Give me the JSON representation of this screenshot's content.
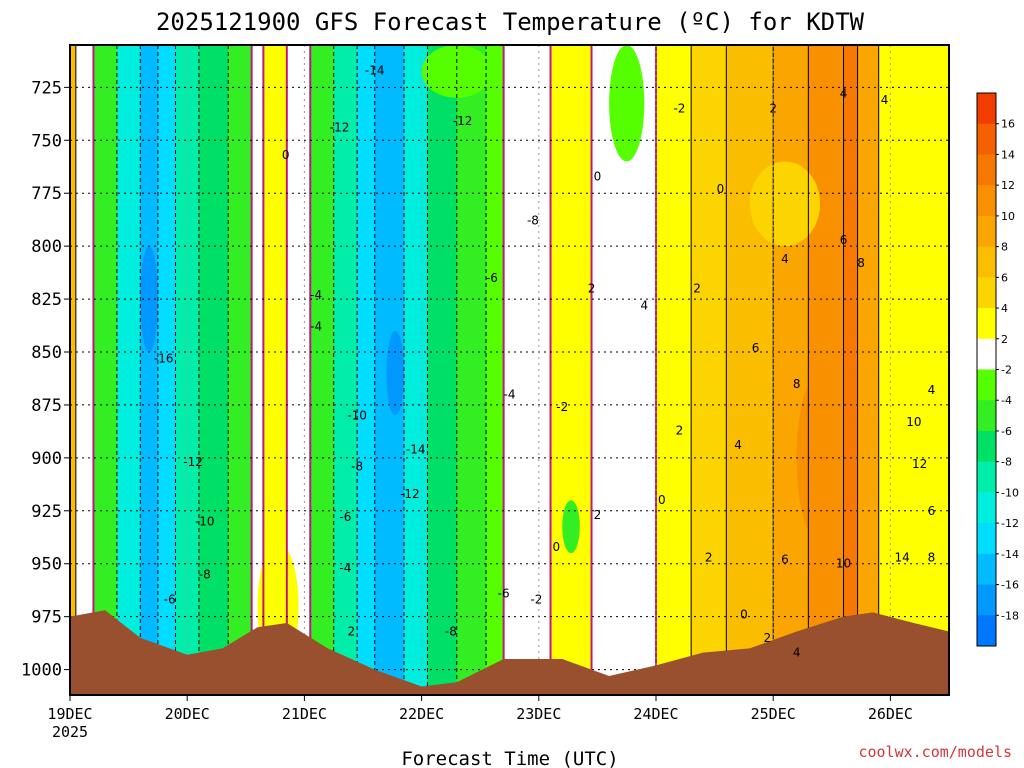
{
  "chart_data": {
    "type": "heatmap",
    "title": "2025121900 GFS Forecast Temperature (ºC) for KDTW",
    "xlabel": "Forecast Time (UTC)",
    "ylabel": "",
    "x_ticks": [
      "19DEC",
      "20DEC",
      "21DEC",
      "22DEC",
      "23DEC",
      "24DEC",
      "25DEC",
      "26DEC"
    ],
    "x_year": "2025",
    "y_unit": "hPa",
    "y_ticks": [
      725,
      750,
      775,
      800,
      825,
      850,
      875,
      900,
      925,
      950,
      975,
      1000
    ],
    "ylim": [
      1012,
      705
    ],
    "xlim_days": [
      0,
      7.5
    ],
    "grid": true,
    "colorbar": {
      "ticks": [
        16,
        14,
        12,
        10,
        8,
        6,
        4,
        2,
        -2,
        -4,
        -6,
        -8,
        -10,
        -12,
        -14,
        -16,
        -18
      ],
      "bins": [
        {
          "min": 16,
          "max": 18,
          "color": "#f23c00"
        },
        {
          "min": 14,
          "max": 16,
          "color": "#f45f00"
        },
        {
          "min": 12,
          "max": 14,
          "color": "#f67800"
        },
        {
          "min": 10,
          "max": 12,
          "color": "#f89000"
        },
        {
          "min": 8,
          "max": 10,
          "color": "#faa500"
        },
        {
          "min": 6,
          "max": 8,
          "color": "#fbbd00"
        },
        {
          "min": 4,
          "max": 6,
          "color": "#fcd500"
        },
        {
          "min": 2,
          "max": 4,
          "color": "#ffff00"
        },
        {
          "min": -2,
          "max": 2,
          "color": "#ffffff"
        },
        {
          "min": -4,
          "max": -2,
          "color": "#55ff00"
        },
        {
          "min": -6,
          "max": -4,
          "color": "#33ee22"
        },
        {
          "min": -8,
          "max": -6,
          "color": "#00e066"
        },
        {
          "min": -10,
          "max": -8,
          "color": "#00eeaa"
        },
        {
          "min": -12,
          "max": -10,
          "color": "#00eedd"
        },
        {
          "min": -14,
          "max": -12,
          "color": "#00ddff"
        },
        {
          "min": -16,
          "max": -14,
          "color": "#00bbff"
        },
        {
          "min": -18,
          "max": -16,
          "color": "#0099ff"
        },
        {
          "min": -20,
          "max": -18,
          "color": "#0077ff"
        }
      ]
    },
    "bands": [
      {
        "x0": 0.0,
        "x1": 0.05,
        "value": 7
      },
      {
        "x0": 0.05,
        "x1": 0.2,
        "value": 1
      },
      {
        "x0": 0.2,
        "x1": 0.4,
        "value": -5
      },
      {
        "x0": 0.4,
        "x1": 0.6,
        "value": -11
      },
      {
        "x0": 0.6,
        "x1": 0.75,
        "value": -15
      },
      {
        "x0": 0.75,
        "x1": 0.9,
        "value": -13
      },
      {
        "x0": 0.9,
        "x1": 1.1,
        "value": -9
      },
      {
        "x0": 1.1,
        "x1": 1.35,
        "value": -7
      },
      {
        "x0": 1.35,
        "x1": 1.55,
        "value": -5
      },
      {
        "x0": 1.55,
        "x1": 1.65,
        "value": 0
      },
      {
        "x0": 1.65,
        "x1": 1.85,
        "value": 3
      },
      {
        "x0": 1.85,
        "x1": 2.05,
        "value": 0
      },
      {
        "x0": 2.05,
        "x1": 2.25,
        "value": -5
      },
      {
        "x0": 2.25,
        "x1": 2.45,
        "value": -9
      },
      {
        "x0": 2.45,
        "x1": 2.6,
        "value": -13
      },
      {
        "x0": 2.6,
        "x1": 2.85,
        "value": -15
      },
      {
        "x0": 2.85,
        "x1": 3.05,
        "value": -11
      },
      {
        "x0": 3.05,
        "x1": 3.3,
        "value": -7
      },
      {
        "x0": 3.3,
        "x1": 3.55,
        "value": -5
      },
      {
        "x0": 3.55,
        "x1": 3.7,
        "value": -3
      },
      {
        "x0": 3.7,
        "x1": 4.1,
        "value": 0
      },
      {
        "x0": 4.1,
        "x1": 4.45,
        "value": 3
      },
      {
        "x0": 4.45,
        "x1": 5.0,
        "value": 0
      },
      {
        "x0": 5.0,
        "x1": 5.3,
        "value": 3
      },
      {
        "x0": 5.3,
        "x1": 5.6,
        "value": 5
      },
      {
        "x0": 5.6,
        "x1": 6.0,
        "value": 7
      },
      {
        "x0": 6.0,
        "x1": 6.3,
        "value": 9
      },
      {
        "x0": 6.3,
        "x1": 6.6,
        "value": 11
      },
      {
        "x0": 6.6,
        "x1": 6.72,
        "value": 13
      },
      {
        "x0": 6.72,
        "x1": 6.9,
        "value": 9
      },
      {
        "x0": 6.9,
        "x1": 7.5,
        "value": 3
      }
    ],
    "overlays": [
      {
        "x0": 2.7,
        "x1": 2.85,
        "p0": 840,
        "p1": 880,
        "value": -17
      },
      {
        "x0": 0.6,
        "x1": 0.75,
        "p0": 800,
        "p1": 850,
        "value": -17
      },
      {
        "x0": 4.2,
        "x1": 4.35,
        "p0": 920,
        "p1": 945,
        "value": -5
      },
      {
        "x0": 5.8,
        "x1": 6.4,
        "p0": 760,
        "p1": 800,
        "value": 5
      },
      {
        "x0": 6.2,
        "x1": 6.6,
        "p0": 860,
        "p1": 940,
        "value": 11
      },
      {
        "x0": 1.6,
        "x1": 1.95,
        "p0": 940,
        "p1": 1000,
        "value": 3
      },
      {
        "x0": 4.6,
        "x1": 4.9,
        "p0": 705,
        "p1": 760,
        "value": -3
      },
      {
        "x0": 3.0,
        "x1": 3.6,
        "p0": 705,
        "p1": 730,
        "value": -3
      }
    ],
    "surface_hpa": [
      [
        0.0,
        975
      ],
      [
        0.3,
        972
      ],
      [
        0.6,
        985
      ],
      [
        1.0,
        993
      ],
      [
        1.3,
        990
      ],
      [
        1.6,
        980
      ],
      [
        1.85,
        978
      ],
      [
        2.2,
        990
      ],
      [
        2.6,
        1000
      ],
      [
        3.0,
        1008
      ],
      [
        3.3,
        1006
      ],
      [
        3.7,
        995
      ],
      [
        4.2,
        995
      ],
      [
        4.6,
        1003
      ],
      [
        5.0,
        998
      ],
      [
        5.4,
        992
      ],
      [
        5.8,
        990
      ],
      [
        6.2,
        982
      ],
      [
        6.6,
        975
      ],
      [
        6.85,
        973
      ],
      [
        7.2,
        978
      ],
      [
        7.5,
        982
      ]
    ],
    "contour_labels": [
      {
        "text": "-14",
        "x": 2.6,
        "p": 717
      },
      {
        "text": "-12",
        "x": 3.35,
        "p": 741
      },
      {
        "text": "-12",
        "x": 2.3,
        "p": 744
      },
      {
        "text": "0",
        "x": 1.84,
        "p": 757
      },
      {
        "text": "0",
        "x": 4.5,
        "p": 767
      },
      {
        "text": "0",
        "x": 5.55,
        "p": 773
      },
      {
        "text": "-2",
        "x": 5.2,
        "p": 735
      },
      {
        "text": "2",
        "x": 6.0,
        "p": 735
      },
      {
        "text": "-8",
        "x": 3.95,
        "p": 788
      },
      {
        "text": "-6",
        "x": 3.6,
        "p": 815
      },
      {
        "text": "2",
        "x": 4.45,
        "p": 820
      },
      {
        "text": "4",
        "x": 4.9,
        "p": 828
      },
      {
        "text": "2",
        "x": 5.35,
        "p": 820
      },
      {
        "text": "4",
        "x": 6.1,
        "p": 806
      },
      {
        "text": "6",
        "x": 6.6,
        "p": 797
      },
      {
        "text": "8",
        "x": 6.75,
        "p": 808
      },
      {
        "text": "4",
        "x": 6.6,
        "p": 728
      },
      {
        "text": "4",
        "x": 6.95,
        "p": 731
      },
      {
        "text": "-4",
        "x": 2.1,
        "p": 823
      },
      {
        "text": "-4",
        "x": 2.1,
        "p": 838
      },
      {
        "text": "-16",
        "x": 0.8,
        "p": 853
      },
      {
        "text": "6",
        "x": 5.85,
        "p": 848
      },
      {
        "text": "8",
        "x": 6.2,
        "p": 865
      },
      {
        "text": "-4",
        "x": 3.75,
        "p": 870
      },
      {
        "text": "-2",
        "x": 4.2,
        "p": 876
      },
      {
        "text": "-10",
        "x": 2.45,
        "p": 880
      },
      {
        "text": "2",
        "x": 5.2,
        "p": 887
      },
      {
        "text": "4",
        "x": 5.7,
        "p": 894
      },
      {
        "text": "10",
        "x": 7.2,
        "p": 883
      },
      {
        "text": "4",
        "x": 7.35,
        "p": 868
      },
      {
        "text": "-14",
        "x": 2.95,
        "p": 896
      },
      {
        "text": "-12",
        "x": 1.05,
        "p": 902
      },
      {
        "text": "-8",
        "x": 2.45,
        "p": 904
      },
      {
        "text": "12",
        "x": 7.25,
        "p": 903
      },
      {
        "text": "-12",
        "x": 2.9,
        "p": 917
      },
      {
        "text": "0",
        "x": 5.05,
        "p": 920
      },
      {
        "text": "2",
        "x": 4.5,
        "p": 927
      },
      {
        "text": "6",
        "x": 7.35,
        "p": 925
      },
      {
        "text": "-10",
        "x": 1.15,
        "p": 930
      },
      {
        "text": "-6",
        "x": 2.35,
        "p": 928
      },
      {
        "text": "0",
        "x": 4.15,
        "p": 942
      },
      {
        "text": "2",
        "x": 5.45,
        "p": 947
      },
      {
        "text": "6",
        "x": 6.1,
        "p": 948
      },
      {
        "text": "10",
        "x": 6.6,
        "p": 950
      },
      {
        "text": "14",
        "x": 7.1,
        "p": 947
      },
      {
        "text": "8",
        "x": 7.35,
        "p": 947
      },
      {
        "text": "-8",
        "x": 1.15,
        "p": 955
      },
      {
        "text": "-4",
        "x": 2.35,
        "p": 952
      },
      {
        "text": "-6",
        "x": 0.85,
        "p": 967
      },
      {
        "text": "-6",
        "x": 3.7,
        "p": 964
      },
      {
        "text": "-2",
        "x": 3.98,
        "p": 967
      },
      {
        "text": "0",
        "x": 5.75,
        "p": 974
      },
      {
        "text": "2",
        "x": 2.4,
        "p": 982
      },
      {
        "text": "-8",
        "x": 3.25,
        "p": 982
      },
      {
        "text": "2",
        "x": 5.95,
        "p": 985
      },
      {
        "text": "4",
        "x": 6.2,
        "p": 992
      }
    ],
    "credit": "coolwx.com/models"
  }
}
